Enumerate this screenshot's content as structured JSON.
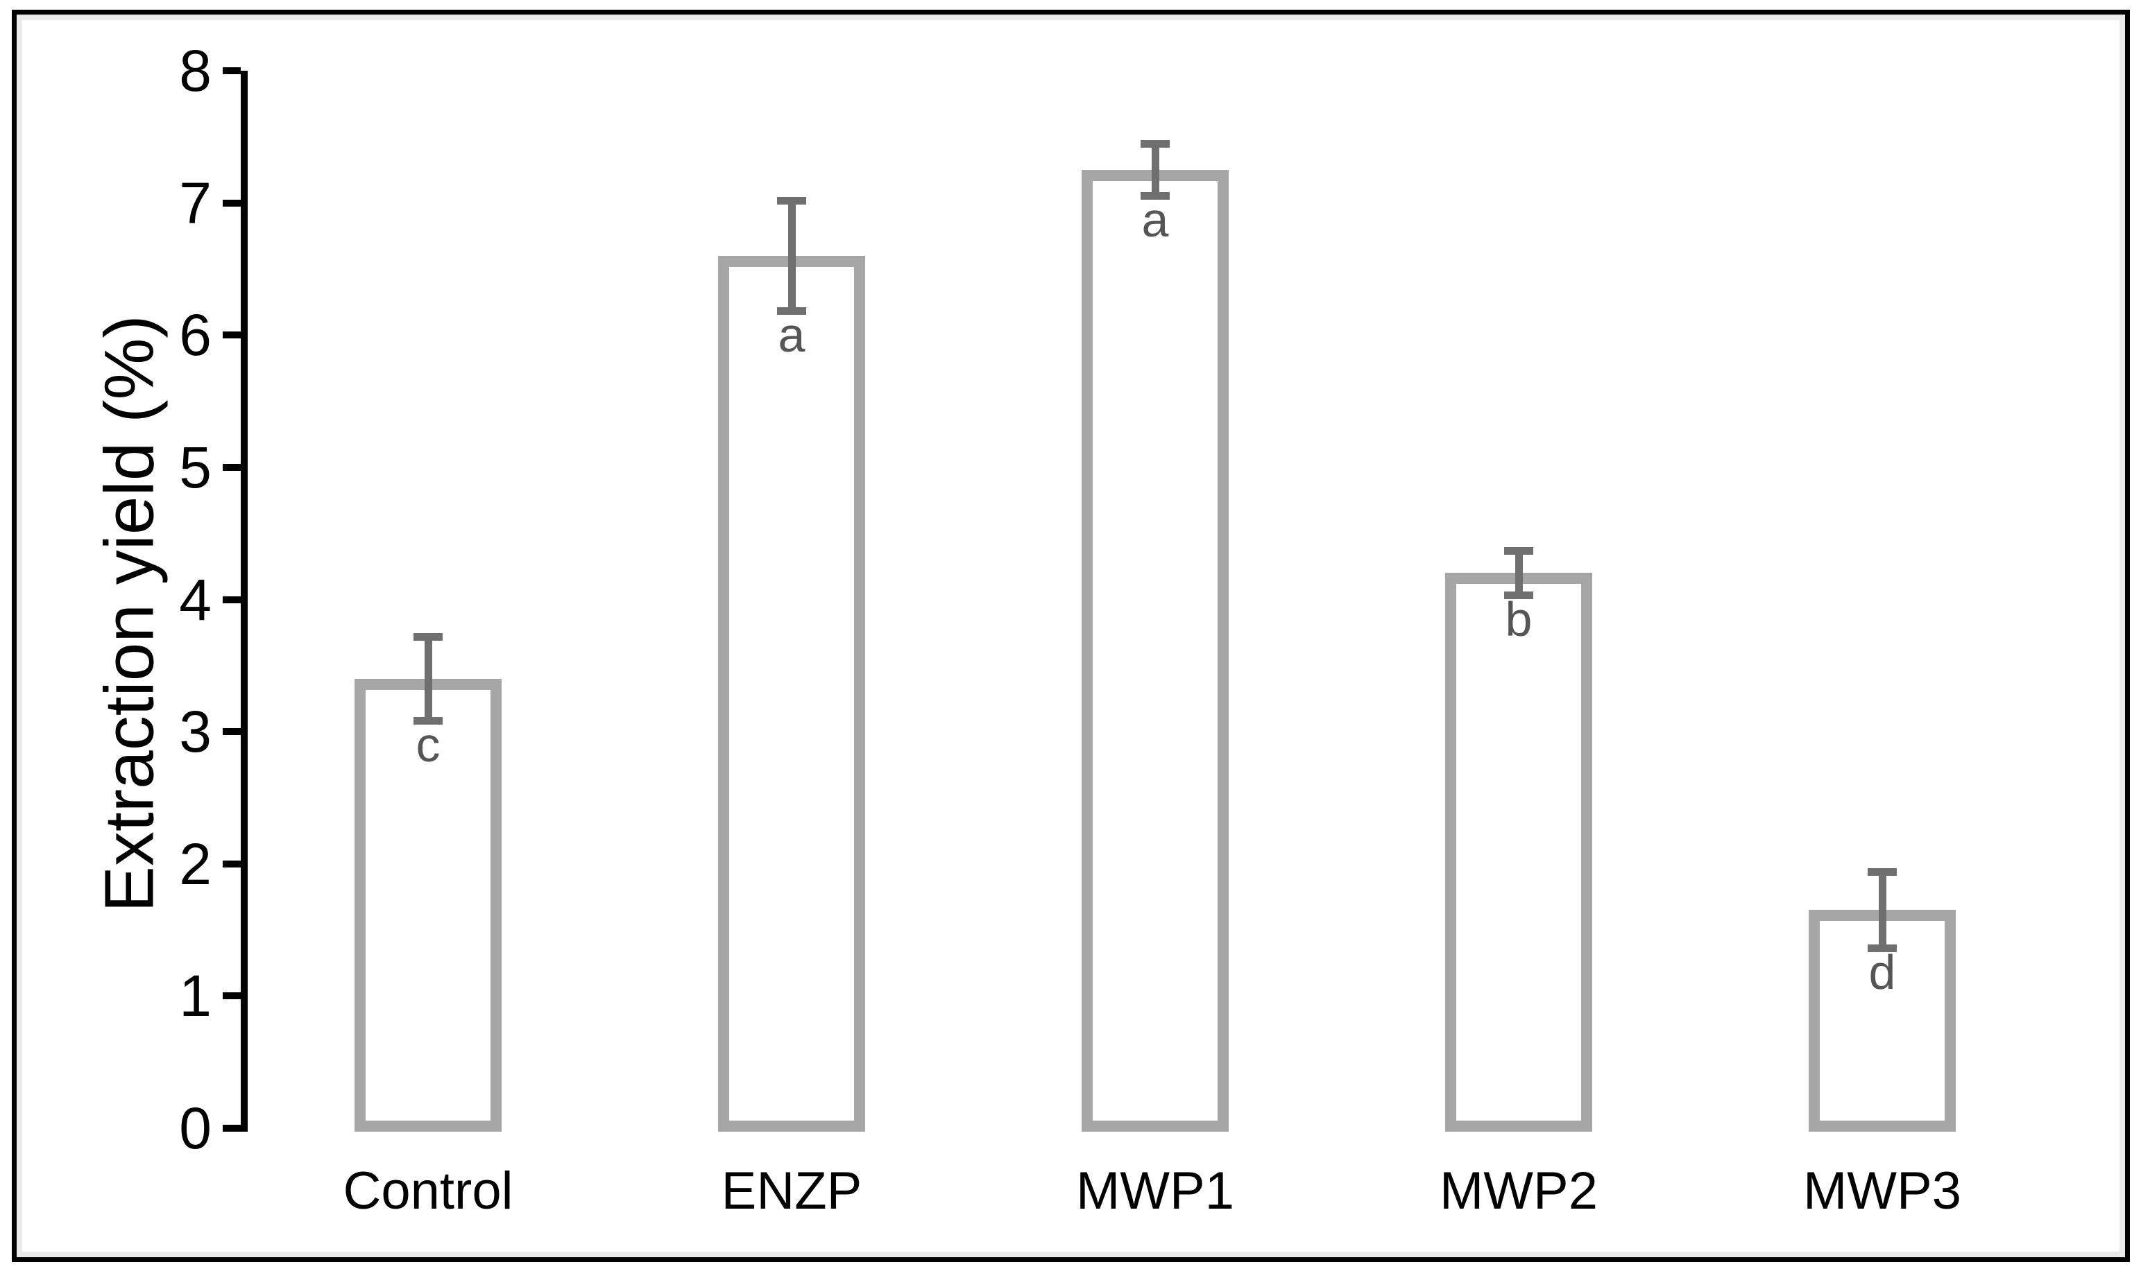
{
  "figure": {
    "background": "#ffffff",
    "border_color": "#000000",
    "inner_rim_color": "#eaeaea"
  },
  "chart_data": {
    "type": "bar",
    "title": "",
    "xlabel": "",
    "ylabel": "Extraction yield  (%)",
    "ylim": [
      0,
      8
    ],
    "ytick_step": 1,
    "yticks": [
      "0",
      "1",
      "2",
      "3",
      "4",
      "5",
      "6",
      "7",
      "8"
    ],
    "grid": false,
    "legend": "none",
    "categories": [
      "Control",
      "ENZP",
      "MWP1",
      "MWP2",
      "MWP3"
    ],
    "values": [
      3.4,
      6.6,
      7.25,
      4.2,
      1.65
    ],
    "errors": [
      0.3,
      0.4,
      0.18,
      0.15,
      0.27
    ],
    "sig_letters": [
      "c",
      "a",
      "a",
      "b",
      "d"
    ],
    "colors": {
      "bar_fill": "#ffffff",
      "bar_border": "#a6a6a6",
      "error_bar": "#6f6f6f",
      "sig_letter": "#555555",
      "axis": "#000000",
      "tick_label": "#000000"
    }
  }
}
